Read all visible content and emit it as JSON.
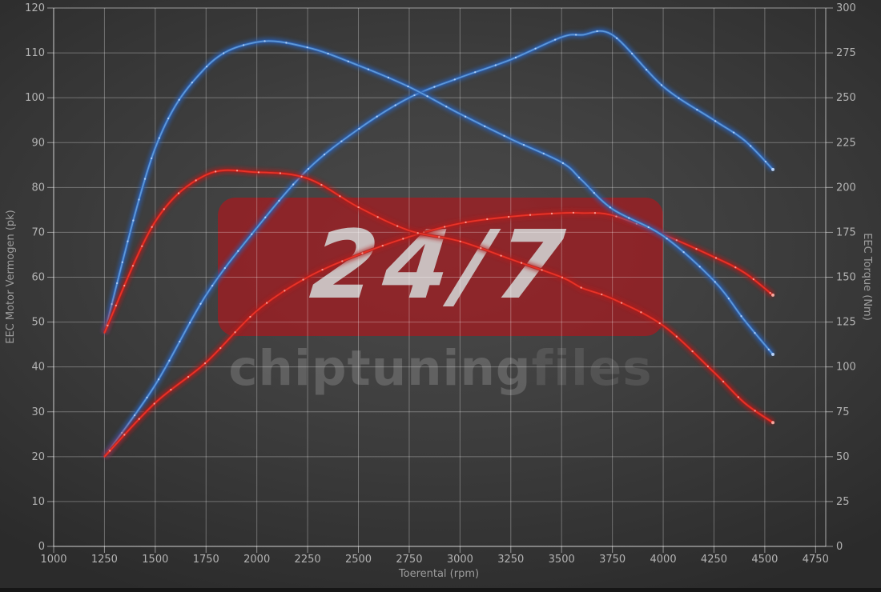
{
  "watermark": {
    "badge_text": "24/7",
    "brand_part1": "chiptuning",
    "brand_part2": "files"
  },
  "colors": {
    "blue_core": "#5f99d8",
    "blue_glow": "#2b62b8",
    "blue_dot": "#c3dcff",
    "red_core": "#e93328",
    "red_glow": "#b01f1c",
    "red_dot": "#ffb4aa",
    "grid": "rgba(255,255,255,0.30)",
    "axis": "rgba(255,255,255,0.50)",
    "tick_text": "#b3b3b3",
    "watermark_box": "rgba(178,22,28,0.66)"
  },
  "chart_data": {
    "type": "line",
    "grid": true,
    "legend": "none",
    "x_axis": {
      "label": "Toerental (rpm)",
      "min": 1000,
      "max": 4800,
      "ticks": [
        1000,
        1250,
        1500,
        1750,
        2000,
        2250,
        2500,
        2750,
        3000,
        3250,
        3500,
        3750,
        4000,
        4250,
        4500,
        4750
      ]
    },
    "y_left": {
      "label": "EEC Motor Vermogen (pk)",
      "min": 0,
      "max": 120,
      "ticks": [
        0,
        10,
        20,
        30,
        40,
        50,
        60,
        70,
        80,
        90,
        100,
        110,
        120
      ]
    },
    "y_right": {
      "label": "EEC Torque (Nm)",
      "min": 0,
      "max": 300,
      "ticks": [
        0,
        25,
        50,
        75,
        100,
        125,
        150,
        175,
        200,
        225,
        250,
        275,
        300
      ]
    },
    "rpm": [
      1250,
      1500,
      1750,
      2000,
      2250,
      2500,
      2750,
      3000,
      3250,
      3500,
      3600,
      3750,
      4000,
      4250,
      4400,
      4540
    ],
    "series": [
      {
        "id": "blue-power",
        "unit": "pk",
        "axis": "left",
        "color": "blue",
        "values": [
          20,
          36,
          56,
          71,
          84,
          93,
          100,
          104.5,
          108.5,
          113.5,
          114,
          114,
          102.5,
          95,
          90.5,
          84
        ]
      },
      {
        "id": "red-power",
        "unit": "pk",
        "axis": "left",
        "color": "red",
        "values": [
          20,
          32,
          41,
          52.5,
          60,
          65,
          69,
          72,
          73.5,
          74.3,
          74.3,
          73.8,
          69.5,
          64.5,
          61,
          56
        ]
      },
      {
        "id": "blue-torque",
        "unit": "Nm",
        "axis": "right",
        "color": "blue",
        "values": [
          119,
          222,
          267,
          281,
          278,
          268,
          256,
          241,
          227,
          214,
          204,
          188,
          173,
          148,
          126,
          107
        ]
      },
      {
        "id": "red-torque",
        "unit": "Nm",
        "axis": "right",
        "color": "red",
        "values": [
          119,
          181,
          207,
          208.5,
          205,
          189,
          176,
          170,
          160,
          150,
          144,
          138,
          123,
          97,
          80,
          69
        ]
      }
    ]
  }
}
